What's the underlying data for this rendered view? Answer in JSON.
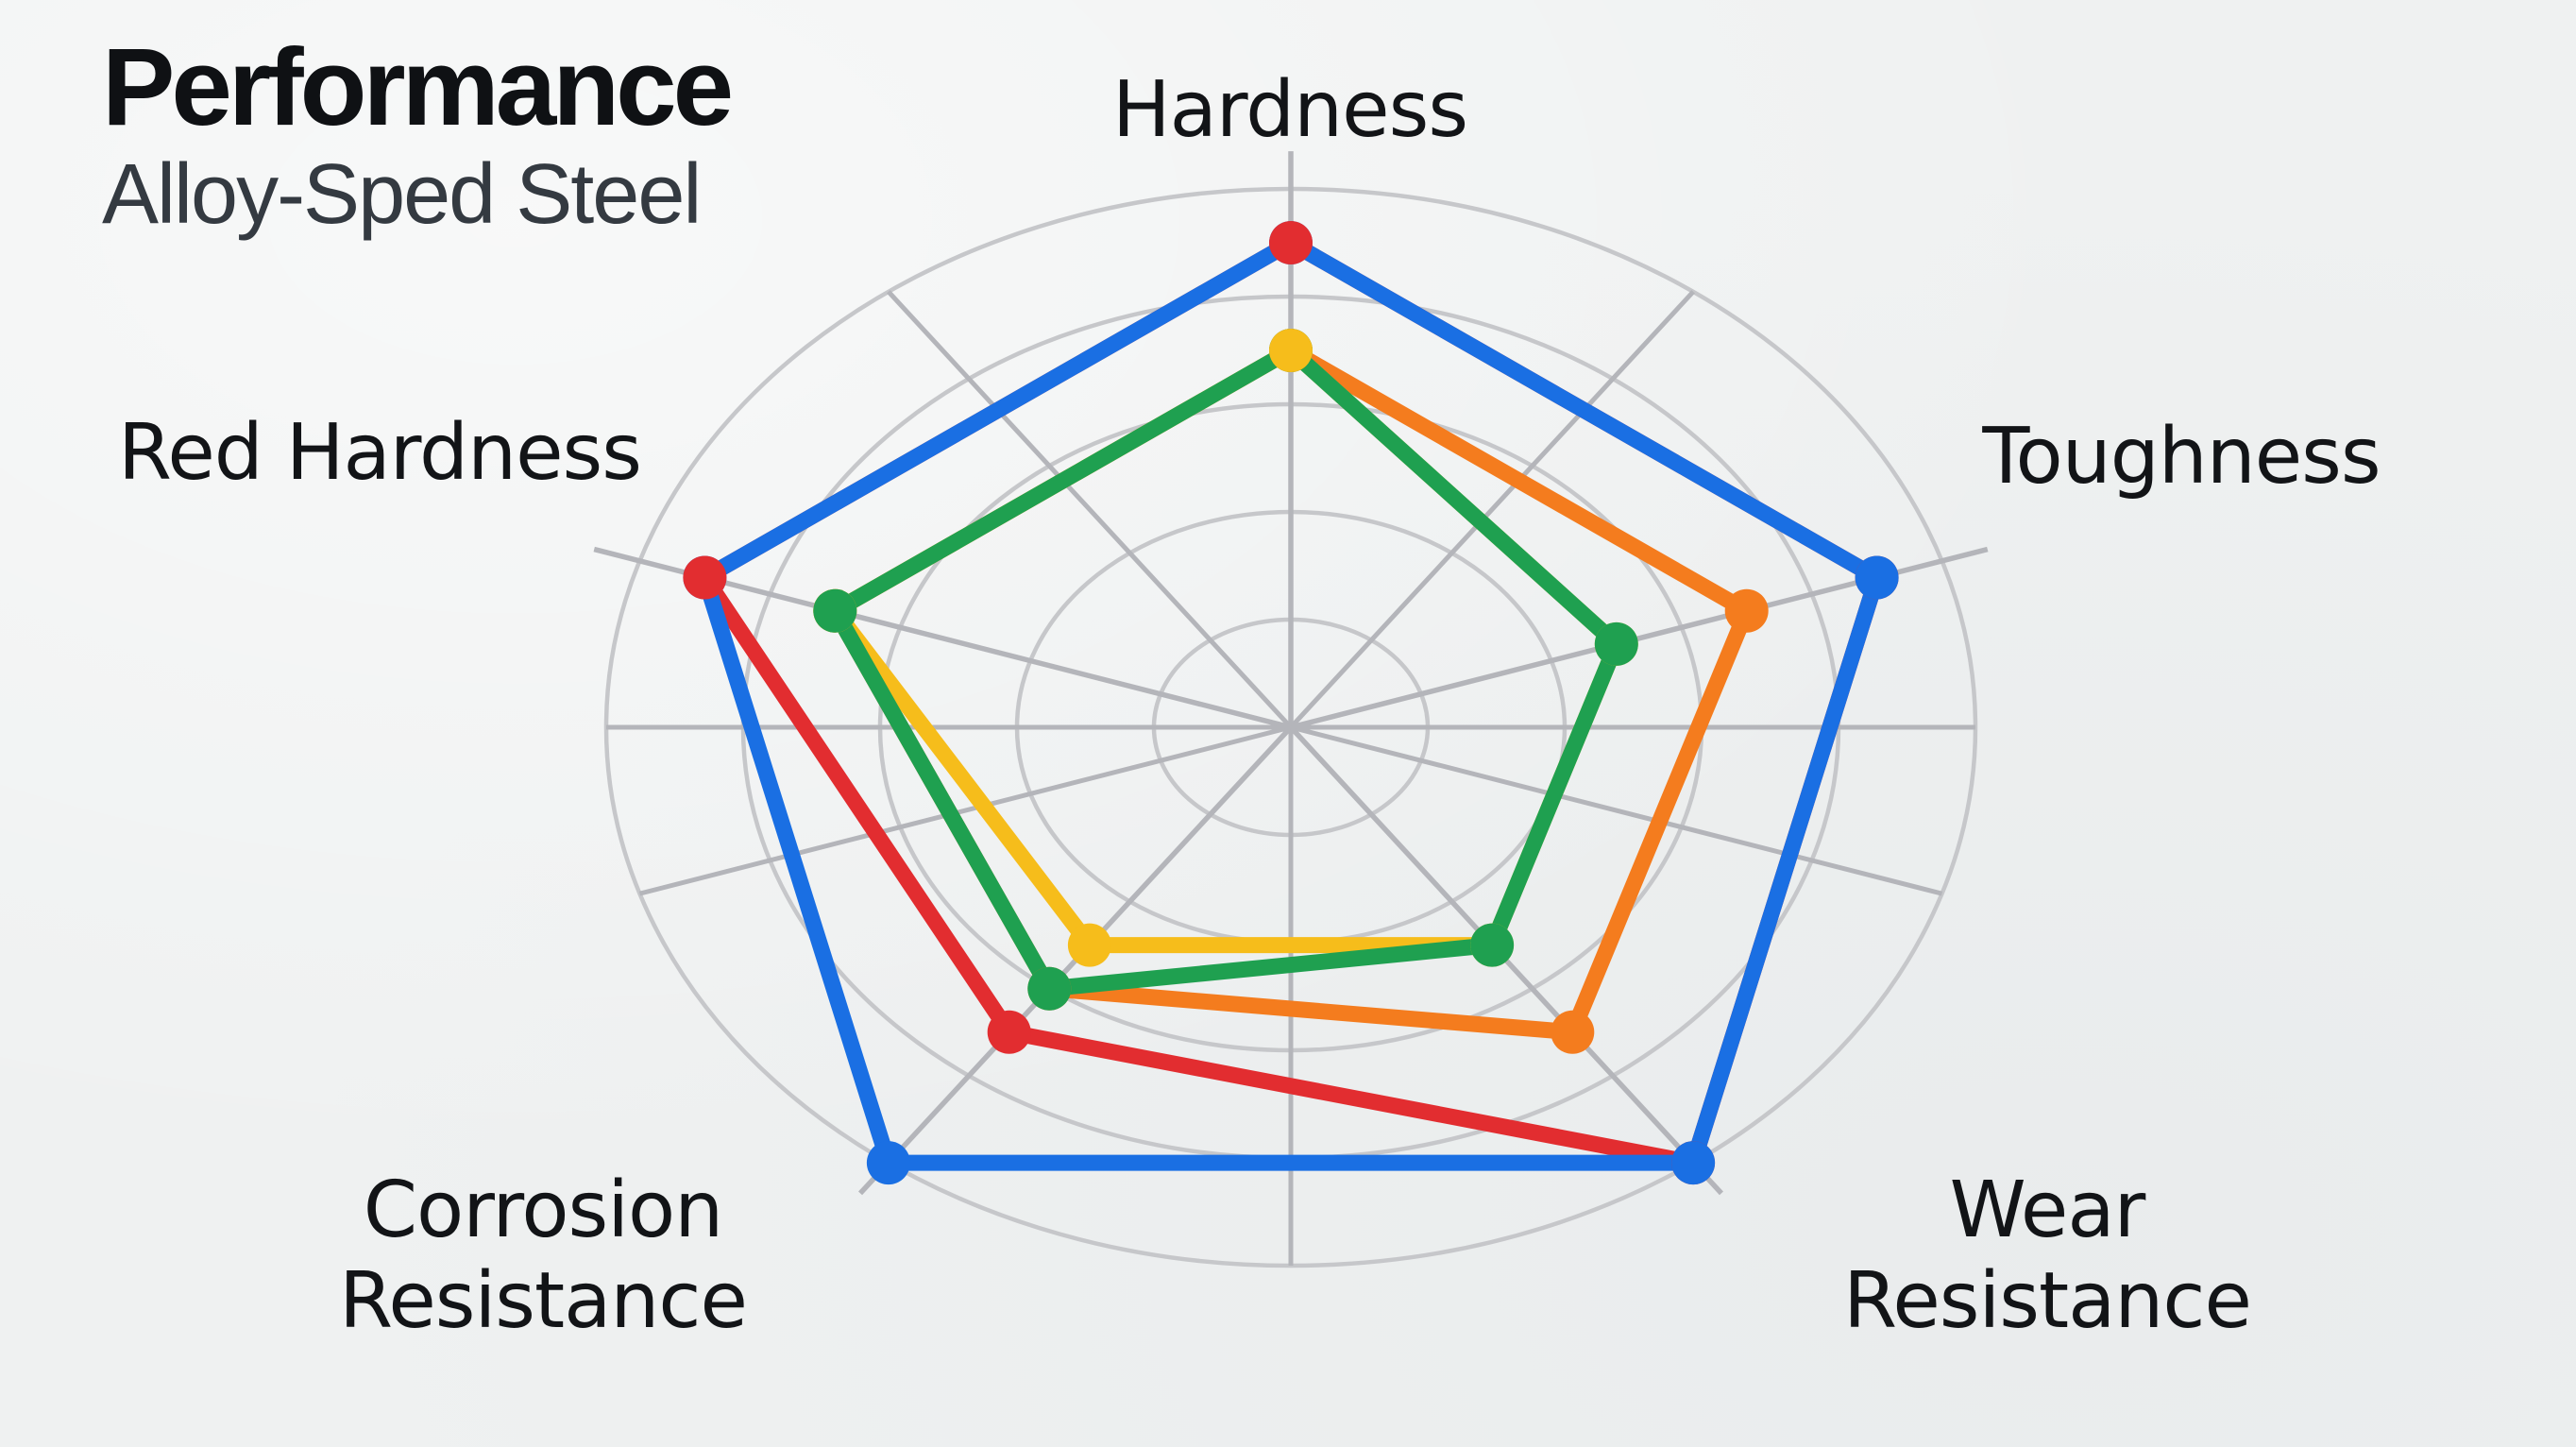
{
  "header": {
    "title": "Performance",
    "subtitle": "Alloy-Sped Steel"
  },
  "chart_data": {
    "type": "radar",
    "title": "Performance",
    "subtitle": "Alloy-Sped Steel",
    "categories": [
      "Hardness",
      "Toughness",
      "Wear Resistance",
      "Corrosion Resistance",
      "Red Hardness"
    ],
    "category_label_lines": [
      [
        "Hardness"
      ],
      [
        "Toughness"
      ],
      [
        "Wear",
        "Resistance"
      ],
      [
        "Corrosion",
        "Resistance"
      ],
      [
        "Red Hardness"
      ]
    ],
    "scale": {
      "min": 0,
      "max": 10,
      "ring_values": [
        2,
        4,
        6,
        8,
        10
      ],
      "grid": "polar-ellipse",
      "legend_position": "none"
    },
    "series": [
      {
        "name": "red",
        "color": "#e22d30",
        "values": [
          9,
          9,
          10,
          7,
          9
        ]
      },
      {
        "name": "blue",
        "color": "#1a6fe3",
        "values": [
          9,
          9,
          10,
          10,
          9
        ]
      },
      {
        "name": "orange",
        "color": "#f47c1e",
        "values": [
          7,
          7,
          7,
          6,
          7
        ]
      },
      {
        "name": "yellow",
        "color": "#f6bd1b",
        "values": [
          7,
          5,
          5,
          5,
          7
        ]
      },
      {
        "name": "green",
        "color": "#1fa050",
        "values": [
          7,
          5,
          5,
          6,
          7
        ]
      }
    ],
    "colors": {
      "grid_ring": "#c6c7ca",
      "grid_spoke": "#b4b5ba",
      "background": "#eff1f1",
      "title_text": "#0f1114",
      "subtitle_text": "#343a41",
      "label_text": "#121417"
    }
  }
}
